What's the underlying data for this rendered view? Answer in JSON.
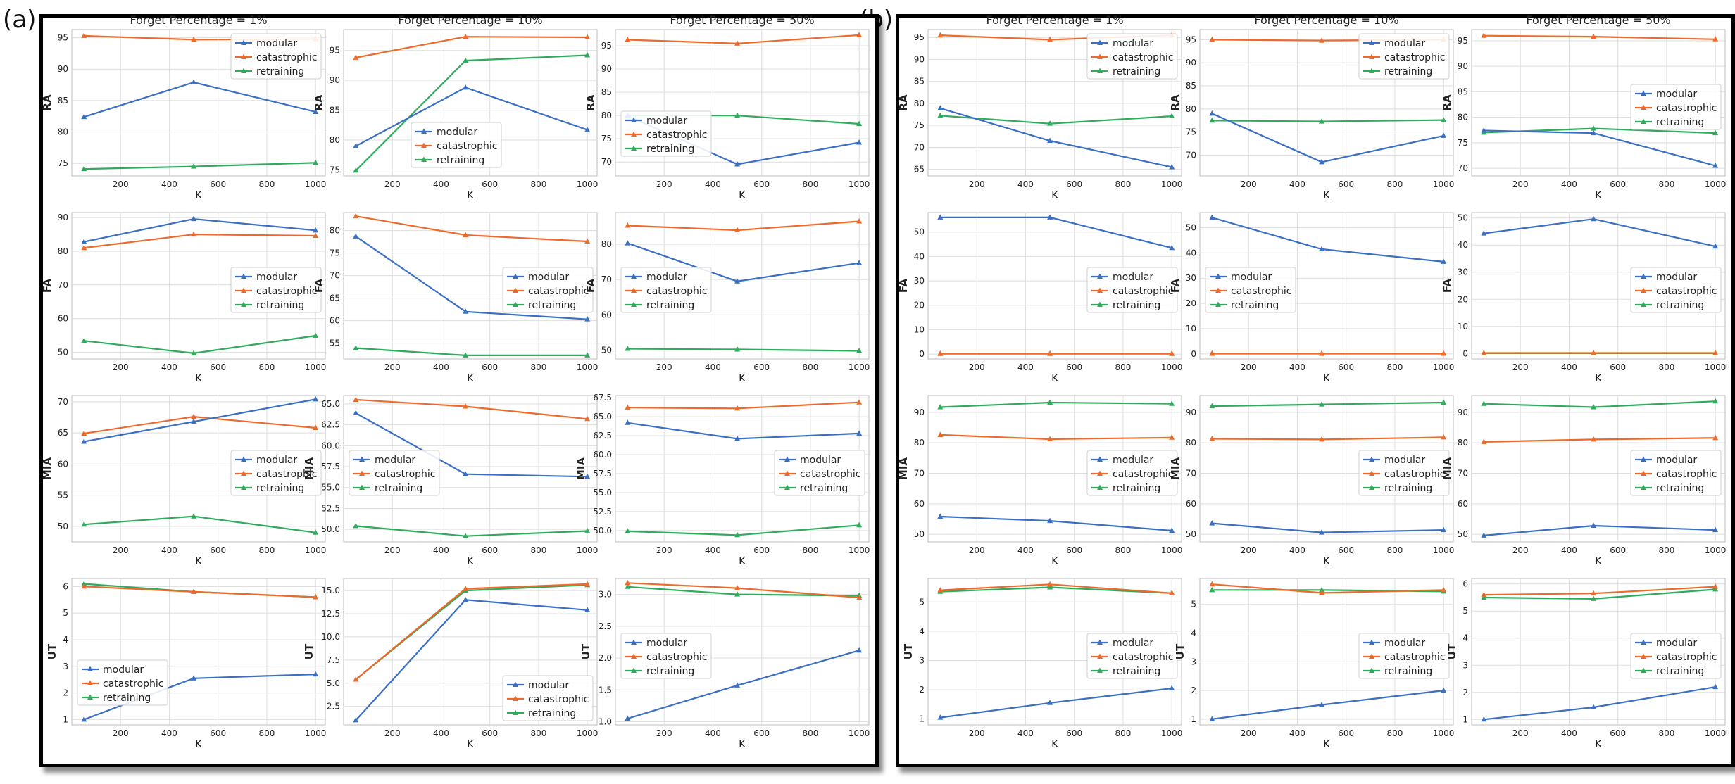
{
  "panels": [
    {
      "label": "(a)"
    },
    {
      "label": "(b)"
    }
  ],
  "colors": {
    "modular": "#3a6fc4",
    "catastrophic": "#ed6a2b",
    "retraining": "#2fab5c"
  },
  "chart_data": [
    {
      "panel": "(a)",
      "type": "line",
      "x": [
        50,
        500,
        1000
      ],
      "xlabel": "K",
      "xticks": [
        200,
        400,
        600,
        800,
        1000
      ],
      "legend": [
        "modular",
        "catastrophic",
        "retraining"
      ],
      "columns": [
        "Forget Percentage = 1%",
        "Forget Percentage = 10%",
        "Forget Percentage = 50%"
      ],
      "rows": [
        "RA",
        "FA",
        "MIA",
        "UT"
      ],
      "subplots": [
        [
          {
            "ylim": [
              73,
              96.3
            ],
            "yticks": [
              "75",
              "80",
              "85",
              "90",
              "95"
            ],
            "legend_pos": "upper-right",
            "series": {
              "modular": [
                82.4,
                87.9,
                83.2
              ],
              "catastrophic": [
                95.3,
                94.7,
                94.8
              ],
              "retraining": [
                74.1,
                74.5,
                75.1
              ]
            }
          },
          {
            "ylim": [
              74,
              98.5
            ],
            "yticks": [
              "75",
              "80",
              "85",
              "90",
              "95"
            ],
            "legend_pos": "lower-center",
            "series": {
              "modular": [
                79.0,
                88.8,
                81.7
              ],
              "catastrophic": [
                93.8,
                97.3,
                97.2
              ],
              "retraining": [
                74.9,
                93.3,
                94.2
              ]
            }
          },
          {
            "ylim": [
              67,
              98.5
            ],
            "yticks": [
              "70",
              "75",
              "80",
              "85",
              "90",
              "95"
            ],
            "legend_pos": "lower-left",
            "series": {
              "modular": [
                79.9,
                69.5,
                74.2
              ],
              "catastrophic": [
                96.3,
                95.5,
                97.3
              ],
              "retraining": [
                80.0,
                80.0,
                78.2
              ]
            }
          }
        ],
        [
          {
            "ylim": [
              48,
              91.5
            ],
            "yticks": [
              "50",
              "60",
              "70",
              "80",
              "90"
            ],
            "legend_pos": "center-right",
            "series": {
              "modular": [
                82.8,
                89.6,
                86.2
              ],
              "catastrophic": [
                81.0,
                85.0,
                84.6
              ],
              "retraining": [
                53.4,
                49.7,
                54.9
              ]
            }
          },
          {
            "ylim": [
              51.5,
              84
            ],
            "yticks": [
              "55",
              "60",
              "65",
              "70",
              "75",
              "80"
            ],
            "legend_pos": "center-right",
            "series": {
              "modular": [
                78.7,
                62.0,
                60.3
              ],
              "catastrophic": [
                83.2,
                79.0,
                77.6
              ],
              "retraining": [
                53.9,
                52.3,
                52.3
              ]
            }
          },
          {
            "ylim": [
              47.5,
              89
            ],
            "yticks": [
              "50",
              "60",
              "70",
              "80"
            ],
            "legend_pos": "center-left",
            "series": {
              "modular": [
                80.3,
                69.5,
                74.7
              ],
              "catastrophic": [
                85.3,
                84.0,
                86.5
              ],
              "retraining": [
                50.4,
                50.2,
                49.8
              ]
            }
          }
        ],
        [
          {
            "ylim": [
              47.5,
              71
            ],
            "yticks": [
              "50",
              "55",
              "60",
              "65",
              "70"
            ],
            "legend_pos": "center-right",
            "series": {
              "modular": [
                63.6,
                66.8,
                70.4
              ],
              "catastrophic": [
                64.9,
                67.6,
                65.8
              ],
              "retraining": [
                50.3,
                51.6,
                49.0
              ]
            }
          },
          {
            "ylim": [
              48.5,
              66
            ],
            "yticks": [
              "50.0",
              "52.5",
              "55.0",
              "57.5",
              "60.0",
              "62.5",
              "65.0"
            ],
            "legend_pos": "center-left",
            "series": {
              "modular": [
                63.9,
                56.6,
                56.3
              ],
              "catastrophic": [
                65.5,
                64.7,
                63.2
              ],
              "retraining": [
                50.4,
                49.2,
                49.8
              ]
            }
          },
          {
            "ylim": [
              48.5,
              67.8
            ],
            "yticks": [
              "50.0",
              "52.5",
              "55.0",
              "57.5",
              "60.0",
              "62.5",
              "65.0",
              "67.5"
            ],
            "legend_pos": "center-right",
            "series": {
              "modular": [
                64.2,
                62.1,
                62.8
              ],
              "catastrophic": [
                66.2,
                66.1,
                66.9
              ],
              "retraining": [
                49.9,
                49.4,
                50.7
              ]
            }
          }
        ],
        [
          {
            "ylim": [
              0.8,
              6.3
            ],
            "yticks": [
              "1",
              "2",
              "3",
              "4",
              "5",
              "6"
            ],
            "legend_pos": "lower-left",
            "series": {
              "modular": [
                1.0,
                2.55,
                2.7
              ],
              "catastrophic": [
                6.0,
                5.8,
                5.6
              ],
              "retraining": [
                6.1,
                5.8,
                5.6
              ]
            }
          },
          {
            "ylim": [
              0.5,
              16.3
            ],
            "yticks": [
              "2.5",
              "5.0",
              "7.5",
              "10.0",
              "12.5",
              "15.0"
            ],
            "legend_pos": "lower-right",
            "series": {
              "modular": [
                1.0,
                14.0,
                12.9
              ],
              "catastrophic": [
                5.4,
                15.2,
                15.7
              ],
              "retraining": [
                5.4,
                15.0,
                15.6
              ]
            }
          },
          {
            "ylim": [
              0.95,
              3.25
            ],
            "yticks": [
              "1.0",
              "1.5",
              "2.0",
              "2.5",
              "3.0"
            ],
            "legend_pos": "center-left",
            "series": {
              "modular": [
                1.05,
                1.57,
                2.12
              ],
              "catastrophic": [
                3.18,
                3.1,
                2.95
              ],
              "retraining": [
                3.12,
                3.0,
                2.98
              ]
            }
          }
        ]
      ]
    },
    {
      "panel": "(b)",
      "type": "line",
      "x": [
        50,
        500,
        1000
      ],
      "xlabel": "K",
      "xticks": [
        200,
        400,
        600,
        800,
        1000
      ],
      "legend": [
        "modular",
        "catastrophic",
        "retraining"
      ],
      "columns": [
        "Forget Percentage = 1%",
        "Forget Percentage = 10%",
        "Forget Percentage = 50%"
      ],
      "rows": [
        "RA",
        "FA",
        "MIA",
        "UT"
      ],
      "subplots": [
        [
          {
            "ylim": [
              63.5,
              96.8
            ],
            "yticks": [
              "65",
              "70",
              "75",
              "80",
              "85",
              "90",
              "95"
            ],
            "legend_pos": "upper-right",
            "series": {
              "modular": [
                78.9,
                71.5,
                65.5
              ],
              "catastrophic": [
                95.5,
                94.5,
                95.5
              ],
              "retraining": [
                77.2,
                75.4,
                77.1
              ]
            }
          },
          {
            "ylim": [
              65.5,
              97.2
            ],
            "yticks": [
              "70",
              "75",
              "80",
              "85",
              "90",
              "95"
            ],
            "legend_pos": "upper-right",
            "series": {
              "modular": [
                79.0,
                68.5,
                74.2
              ],
              "catastrophic": [
                95.0,
                94.8,
                95.0
              ],
              "retraining": [
                77.5,
                77.3,
                77.6
              ]
            }
          },
          {
            "ylim": [
              68.5,
              97.2
            ],
            "yticks": [
              "70",
              "75",
              "80",
              "85",
              "90",
              "95"
            ],
            "legend_pos": "center-right",
            "series": {
              "modular": [
                77.4,
                76.9,
                70.5
              ],
              "catastrophic": [
                96.0,
                95.8,
                95.3
              ],
              "retraining": [
                77.0,
                77.8,
                76.9
              ]
            }
          }
        ],
        [
          {
            "ylim": [
              -2,
              58
            ],
            "yticks": [
              "0",
              "10",
              "20",
              "30",
              "40",
              "50"
            ],
            "legend_pos": "center-right",
            "series": {
              "modular": [
                56.0,
                56.0,
                43.5
              ],
              "catastrophic": [
                0.2,
                0.2,
                0.2
              ],
              "retraining": [
                0.1,
                0.1,
                0.1
              ]
            }
          },
          {
            "ylim": [
              -2,
              56
            ],
            "yticks": [
              "0",
              "10",
              "20",
              "30",
              "40",
              "50"
            ],
            "legend_pos": "center-left",
            "series": {
              "modular": [
                54.0,
                41.5,
                36.5
              ],
              "catastrophic": [
                0.2,
                0.2,
                0.2
              ],
              "retraining": [
                0.1,
                0.1,
                0.1
              ]
            }
          },
          {
            "ylim": [
              -2,
              52
            ],
            "yticks": [
              "0",
              "10",
              "20",
              "30",
              "40",
              "50"
            ],
            "legend_pos": "center-right",
            "series": {
              "modular": [
                44.3,
                49.6,
                39.5
              ],
              "catastrophic": [
                0.2,
                0.2,
                0.2
              ],
              "retraining": [
                0.1,
                0.1,
                0.1
              ]
            }
          }
        ],
        [
          {
            "ylim": [
              47.5,
              95.5
            ],
            "yticks": [
              "50",
              "60",
              "70",
              "80",
              "90"
            ],
            "legend_pos": "center-right",
            "series": {
              "modular": [
                55.8,
                54.4,
                51.2
              ],
              "catastrophic": [
                82.6,
                81.2,
                81.7
              ],
              "retraining": [
                91.7,
                93.2,
                92.8
              ]
            }
          },
          {
            "ylim": [
              47.5,
              95.5
            ],
            "yticks": [
              "50",
              "60",
              "70",
              "80",
              "90"
            ],
            "legend_pos": "center-right",
            "series": {
              "modular": [
                53.6,
                50.6,
                51.4
              ],
              "catastrophic": [
                81.3,
                81.1,
                81.8
              ],
              "retraining": [
                92.0,
                92.6,
                93.2
              ]
            }
          },
          {
            "ylim": [
              47.5,
              95.5
            ],
            "yticks": [
              "50",
              "60",
              "70",
              "80",
              "90"
            ],
            "legend_pos": "center-right",
            "series": {
              "modular": [
                49.6,
                52.8,
                51.4
              ],
              "catastrophic": [
                80.3,
                81.1,
                81.6
              ],
              "retraining": [
                92.8,
                91.7,
                93.6
              ]
            }
          }
        ],
        [
          {
            "ylim": [
              0.8,
              5.8
            ],
            "yticks": [
              "1",
              "2",
              "3",
              "4",
              "5"
            ],
            "legend_pos": "center-right",
            "series": {
              "modular": [
                1.05,
                1.55,
                2.05
              ],
              "catastrophic": [
                5.4,
                5.6,
                5.3
              ],
              "retraining": [
                5.35,
                5.5,
                5.3
              ]
            }
          },
          {
            "ylim": [
              0.8,
              5.9
            ],
            "yticks": [
              "1",
              "2",
              "3",
              "4",
              "5"
            ],
            "legend_pos": "center-right",
            "series": {
              "modular": [
                1.0,
                1.5,
                2.0
              ],
              "catastrophic": [
                5.7,
                5.4,
                5.5
              ],
              "retraining": [
                5.5,
                5.5,
                5.45
              ]
            }
          },
          {
            "ylim": [
              0.8,
              6.2
            ],
            "yticks": [
              "1",
              "2",
              "3",
              "4",
              "5",
              "6"
            ],
            "legend_pos": "center-right",
            "series": {
              "modular": [
                1.0,
                1.45,
                2.2
              ],
              "catastrophic": [
                5.6,
                5.65,
                5.9
              ],
              "retraining": [
                5.5,
                5.45,
                5.8
              ]
            }
          }
        ]
      ]
    }
  ]
}
